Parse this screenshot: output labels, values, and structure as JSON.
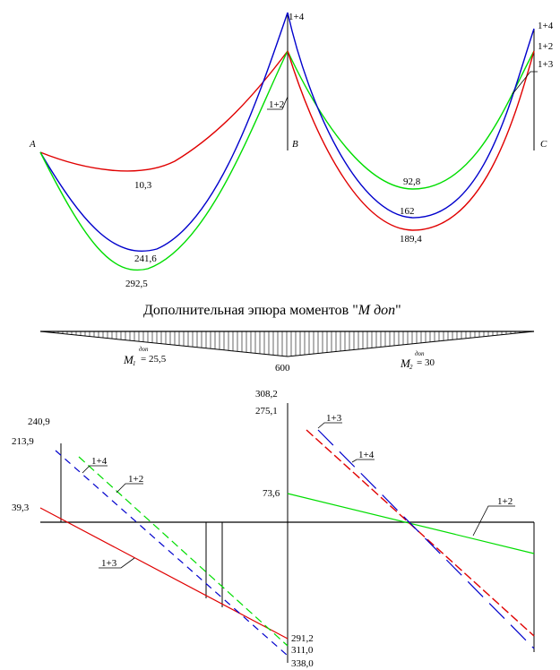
{
  "colors": {
    "red": "#e00000",
    "blue": "#0000cc",
    "green": "#00dd00",
    "black": "#000000"
  },
  "moment_diagram": {
    "supports": {
      "a": "A",
      "b": "B",
      "c": "C"
    },
    "combos_b": {
      "c14": "1+4",
      "c12": "1+2"
    },
    "combos_c": {
      "c14": "1+4",
      "c12": "1+2",
      "c13": "1+3"
    },
    "span1": {
      "red": "10,3",
      "blue": "241,6",
      "green": "292,5"
    },
    "span2": {
      "green": "92,8",
      "blue": "162",
      "red": "189,4"
    }
  },
  "additional": {
    "title": "Дополнительная эпюра моментов \"",
    "title_m": "M",
    "title_sub": "доп",
    "title_end": "\"",
    "m1_sym": "M",
    "m1_idx": "1",
    "m1_sup": "доп",
    "m1_val": "= 25,5",
    "center_val": "600",
    "m2_sym": "M",
    "m2_idx": "2",
    "m2_sup": "доп",
    "m2_val": "= 30"
  },
  "shear_diagram": {
    "left_vals": {
      "v1": "240,9",
      "v2": "213,9",
      "v3": "39,3"
    },
    "top_vals": {
      "v1": "308,2",
      "v2": "275,1"
    },
    "mid_val": "73,6",
    "bottom_vals": {
      "v1": "291,2",
      "v2": "311,0",
      "v3": "338,0"
    },
    "left_combos": {
      "c14": "1+4",
      "c12": "1+2",
      "c13": "1+3"
    },
    "right_combos": {
      "c13": "1+3",
      "c14": "1+4",
      "c12": "1+2"
    }
  }
}
